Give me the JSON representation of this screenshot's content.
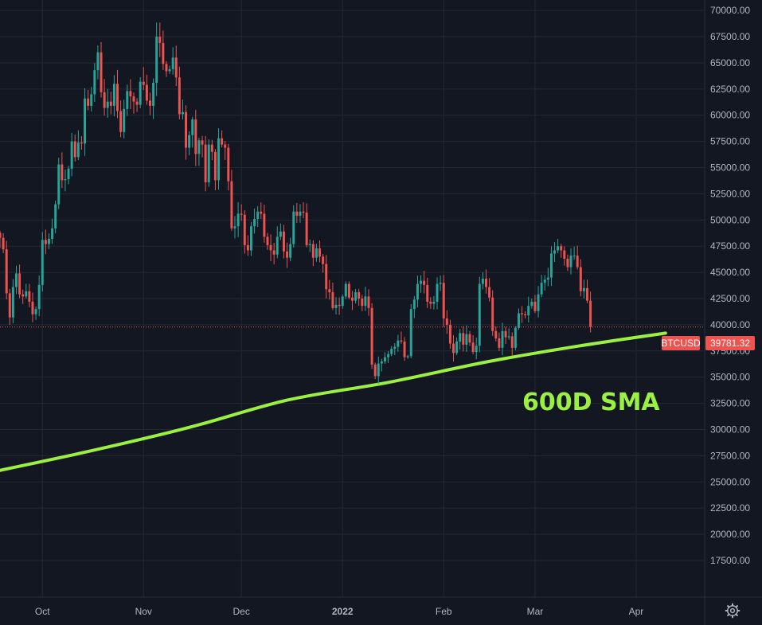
{
  "colors": {
    "background": "#131722",
    "grid": "#242832",
    "axis_text": "#b2b5be",
    "up": "#26a69a",
    "down": "#ef5350",
    "sma": "#9cf041",
    "price_badge": "#ef5350"
  },
  "settings_icon": "gear-icon",
  "chart_data": {
    "type": "candlestick",
    "symbol": "BTCUSD",
    "last_price": "39781.32",
    "annotation": "600D SMA",
    "ylim": [
      14000,
      71000
    ],
    "yticks": [
      "70000.00",
      "67500.00",
      "65000.00",
      "62500.00",
      "60000.00",
      "57500.00",
      "55000.00",
      "52500.00",
      "50000.00",
      "47500.00",
      "45000.00",
      "42500.00",
      "40000.00",
      "37500.00",
      "35000.00",
      "32500.00",
      "30000.00",
      "27500.00",
      "25000.00",
      "22500.00",
      "20000.00",
      "17500.00"
    ],
    "x_start": "2021-09-18",
    "x_end": "2022-04-22",
    "xticks": [
      {
        "date": "2021-10-01",
        "label": "Oct"
      },
      {
        "date": "2021-11-01",
        "label": "Nov"
      },
      {
        "date": "2021-12-01",
        "label": "Dec"
      },
      {
        "date": "2022-01-01",
        "label": "2022"
      },
      {
        "date": "2022-02-01",
        "label": "Feb"
      },
      {
        "date": "2022-03-01",
        "label": "Mar"
      },
      {
        "date": "2022-04-01",
        "label": "Apr"
      }
    ],
    "close_series": {
      "start": "2021-09-18",
      "values": [
        48300,
        47200,
        43000,
        40700,
        43600,
        44900,
        42900,
        42700,
        43200,
        42200,
        41000,
        41500,
        43800,
        48100,
        47700,
        48200,
        49200,
        51500,
        55300,
        53800,
        53900,
        54900,
        57500,
        56000,
        57400,
        57300,
        61600,
        60900,
        62000,
        64300,
        66000,
        62200,
        60700,
        61300,
        60900,
        63000,
        60400,
        58400,
        60600,
        62300,
        61800,
        61300,
        61000,
        63200,
        62900,
        61400,
        60900,
        63100,
        67500,
        66900,
        64900,
        64200,
        64400,
        65500,
        63600,
        60100,
        60300,
        56900,
        58100,
        59600,
        56300,
        57600,
        57200,
        53600,
        57200,
        56500,
        53800,
        57800,
        57200,
        56900,
        53700,
        49200,
        49400,
        50600,
        50500,
        47600,
        47100,
        49400,
        50100,
        50800,
        50600,
        48400,
        47600,
        47100,
        46700,
        48400,
        48900,
        47000,
        46400,
        47700,
        50800,
        50400,
        50800,
        50700,
        47600,
        47700,
        46400,
        47300,
        46500,
        45800,
        43400,
        43100,
        41600,
        41900,
        41800,
        42700,
        43900,
        42600,
        42300,
        43100,
        42500,
        41800,
        42700,
        41600,
        36200,
        35100,
        36300,
        36500,
        36900,
        37200,
        37700,
        37900,
        38500,
        38400,
        36900,
        37000,
        41500,
        42400,
        43900,
        44200,
        43800,
        42200,
        42000,
        42200,
        43900,
        44000,
        40600,
        40000,
        38200,
        37300,
        38400,
        39200,
        38100,
        39100,
        38300,
        37400,
        38000,
        43900,
        44400,
        43600,
        42600,
        39400,
        38700,
        37800,
        39400,
        38800,
        38900,
        37800,
        39700,
        41100,
        41000,
        40900,
        41800,
        42200,
        41300,
        42900,
        44000,
        44300,
        44500,
        46800,
        47100,
        47500,
        47100,
        46300,
        45500,
        46600,
        46600,
        45500,
        43200,
        43500,
        42300,
        39781
      ]
    },
    "sma_600d": {
      "points": [
        [
          "2021-09-18",
          26100
        ],
        [
          "2021-10-15",
          27900
        ],
        [
          "2021-11-15",
          30200
        ],
        [
          "2021-12-15",
          32800
        ],
        [
          "2022-01-15",
          34500
        ],
        [
          "2022-02-15",
          36500
        ],
        [
          "2022-03-15",
          38000
        ],
        [
          "2022-04-10",
          39200
        ]
      ]
    }
  }
}
